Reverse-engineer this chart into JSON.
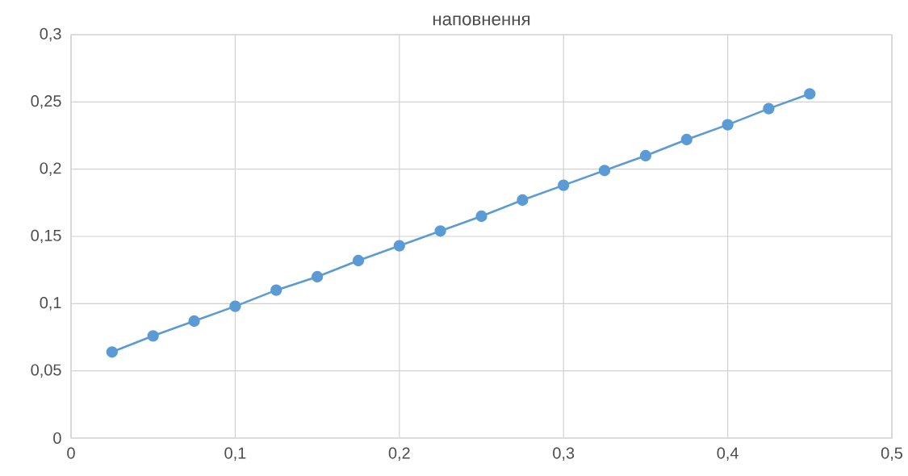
{
  "chart_data": {
    "type": "line",
    "title": "наповнення",
    "x": [
      0.025,
      0.05,
      0.075,
      0.1,
      0.125,
      0.15,
      0.175,
      0.2,
      0.225,
      0.25,
      0.275,
      0.3,
      0.325,
      0.35,
      0.375,
      0.4,
      0.425,
      0.45
    ],
    "series": [
      {
        "color": "#5b9bd5",
        "values": [
          0.064,
          0.076,
          0.087,
          0.098,
          0.11,
          0.12,
          0.132,
          0.143,
          0.154,
          0.165,
          0.177,
          0.188,
          0.199,
          0.21,
          0.222,
          0.233,
          0.245,
          0.256
        ]
      }
    ],
    "xlim": [
      0,
      0.5
    ],
    "ylim": [
      0,
      0.3
    ],
    "xticks": [
      0,
      {
        "value": 0.1,
        "label": "0,1"
      },
      {
        "value": 0.2,
        "label": "0,2"
      },
      {
        "value": 0.3,
        "label": "0,3"
      },
      {
        "value": 0.4,
        "label": "0,4"
      },
      {
        "value": 0.5,
        "label": "0,5"
      }
    ],
    "yticks": [
      0,
      {
        "value": 0.05,
        "label": "0,05"
      },
      {
        "value": 0.1,
        "label": "0,1"
      },
      {
        "value": 0.15,
        "label": "0,15"
      },
      {
        "value": 0.2,
        "label": "0,2"
      },
      {
        "value": 0.25,
        "label": "0,25"
      },
      {
        "value": 0.3,
        "label": "0,3"
      }
    ],
    "grid": true,
    "marker": "circle",
    "line_style": "solid"
  }
}
